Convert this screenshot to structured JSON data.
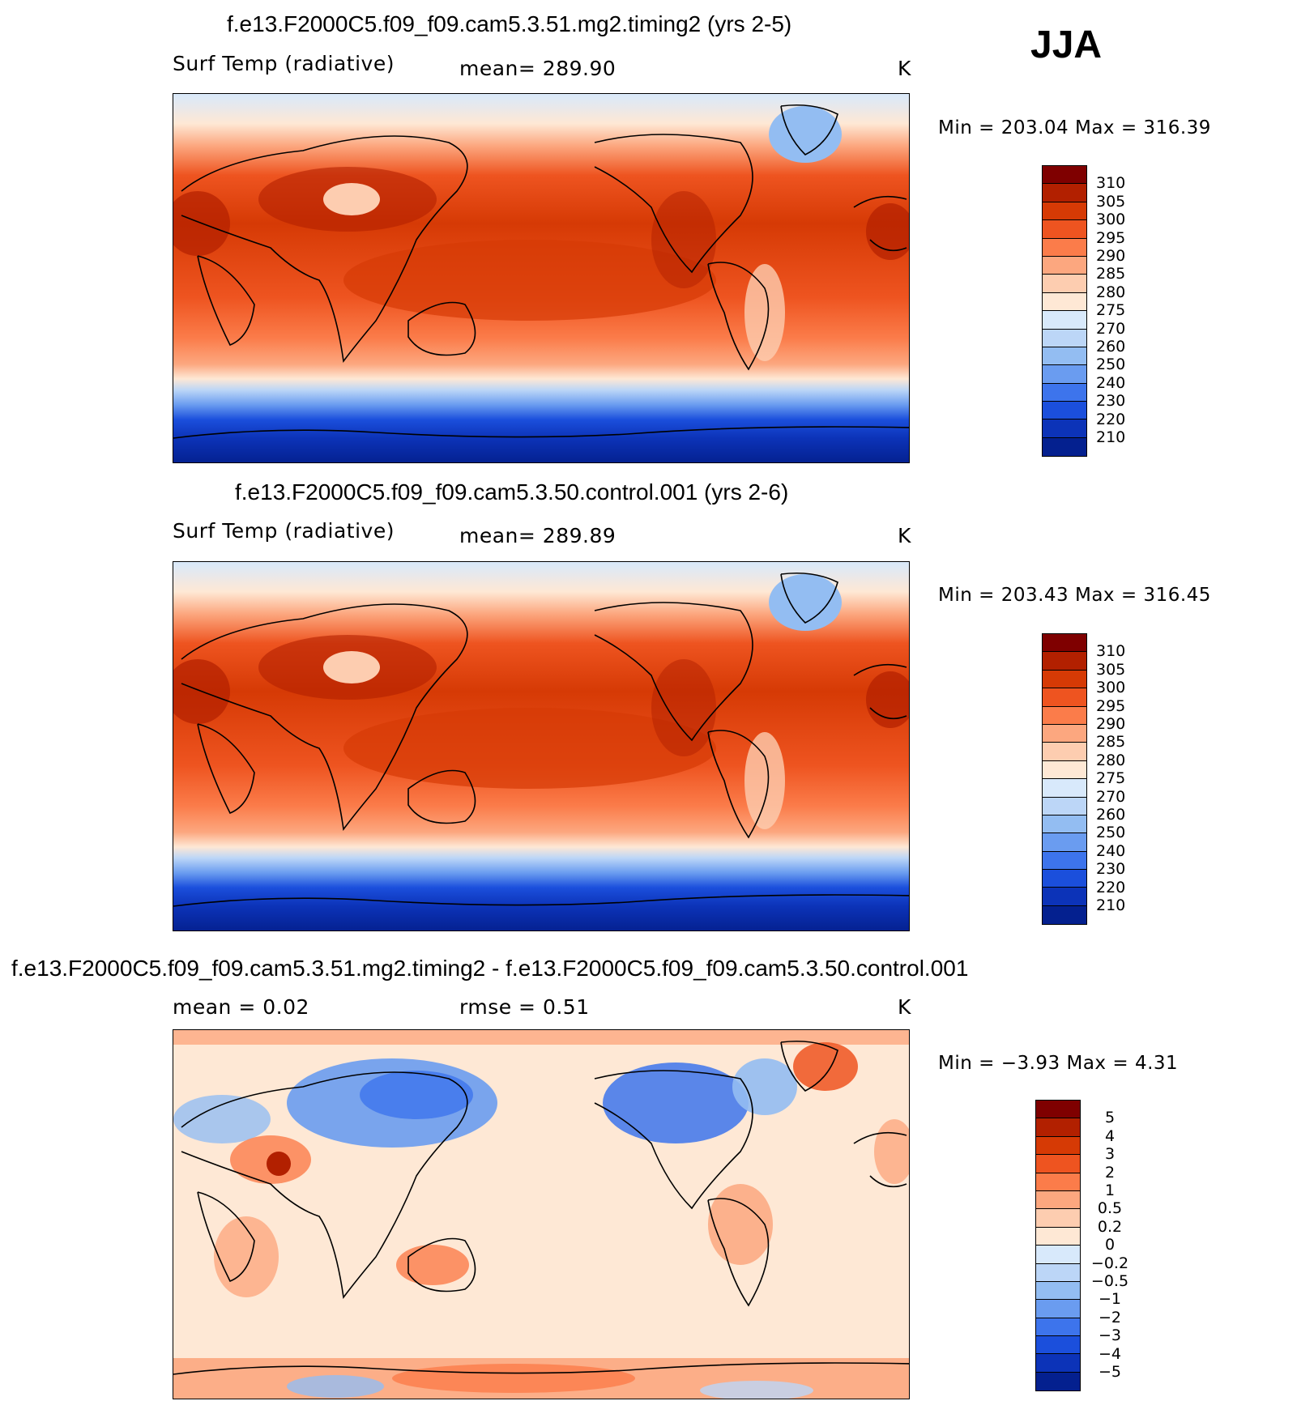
{
  "season": "JJA",
  "panels": [
    {
      "title": "f.e13.F2000C5.f09_f09.cam5.3.51.mg2.timing2 (yrs 2-5)",
      "left_label": "Surf Temp (radiative)",
      "center_label": "mean=  289.90",
      "units": "K",
      "stats": "Min  =  203.04  Max  =  316.39",
      "colorbar_labels": [
        "310",
        "305",
        "300",
        "295",
        "290",
        "285",
        "280",
        "275",
        "270",
        "260",
        "250",
        "240",
        "230",
        "220",
        "210"
      ]
    },
    {
      "title": "f.e13.F2000C5.f09_f09.cam5.3.50.control.001 (yrs 2-6)",
      "left_label": "Surf Temp (radiative)",
      "center_label": "mean=  289.89",
      "units": "K",
      "stats": "Min  =  203.43  Max  =  316.45",
      "colorbar_labels": [
        "310",
        "305",
        "300",
        "295",
        "290",
        "285",
        "280",
        "275",
        "270",
        "260",
        "250",
        "240",
        "230",
        "220",
        "210"
      ]
    },
    {
      "title": "f.e13.F2000C5.f09_f09.cam5.3.51.mg2.timing2 - f.e13.F2000C5.f09_f09.cam5.3.50.control.001",
      "left_label": "mean  =      0.02",
      "center_label": "rmse  =      0.51",
      "units": "K",
      "stats": "Min  =     −3.93  Max  =      4.31",
      "colorbar_labels": [
        "5",
        "4",
        "3",
        "2",
        "1",
        "0.5",
        "0.2",
        "0",
        "−0.2",
        "−0.5",
        "−1",
        "−2",
        "−3",
        "−4",
        "−5"
      ]
    }
  ],
  "colors": {
    "temperature_scale": [
      "#7f0000",
      "#b22000",
      "#d63a05",
      "#ee5420",
      "#fb7c4a",
      "#fca77f",
      "#fdcdb0",
      "#fee8d5",
      "#d8e9fb",
      "#bcd6f7",
      "#93bdf2",
      "#6a9cf0",
      "#3d74ec",
      "#1b4fdc",
      "#0c33b8",
      "#04208f"
    ],
    "difference_scale": [
      "#7f0000",
      "#b22000",
      "#d63a05",
      "#ee5420",
      "#fb7c4a",
      "#fca77f",
      "#fdcdb0",
      "#fee8d5",
      "#d8e9fb",
      "#bcd6f7",
      "#93bdf2",
      "#6a9cf0",
      "#3d74ec",
      "#1b4fdc",
      "#0c33b8",
      "#04208f"
    ]
  }
}
